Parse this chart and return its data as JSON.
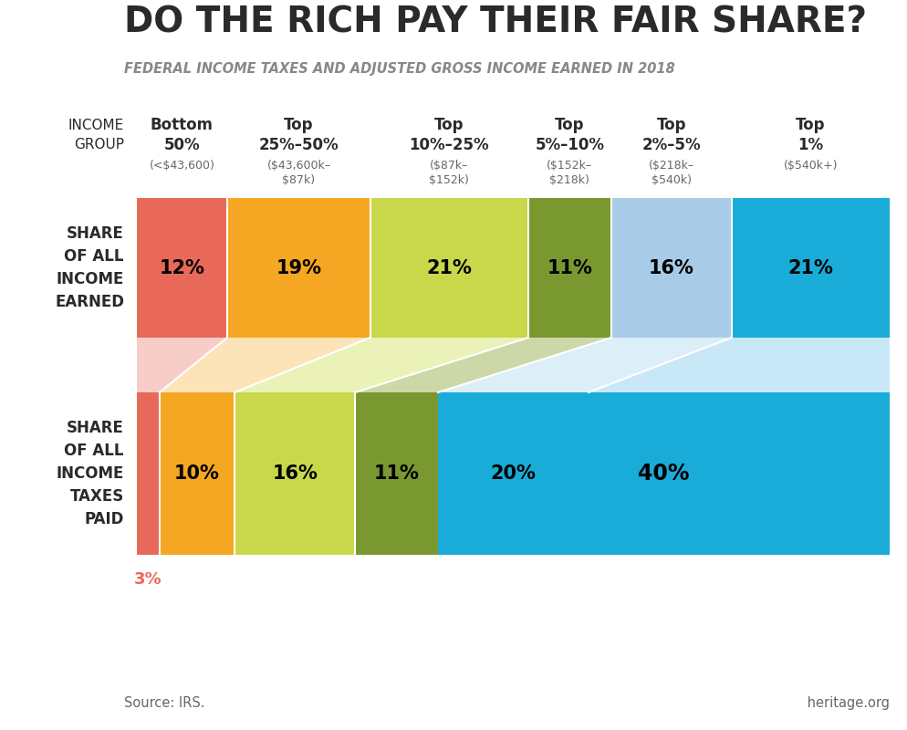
{
  "title": "DO THE RICH PAY THEIR FAIR SHARE?",
  "subtitle": "FEDERAL INCOME TAXES AND ADJUSTED GROSS INCOME EARNED IN 2018",
  "source": "Source: IRS.",
  "branding": " heritage.org",
  "col_labels_main": [
    "Bottom\n50%",
    "Top\n25%–50%",
    "Top\n10%–25%",
    "Top\n5%–10%",
    "Top\n2%–5%",
    "Top\n1%"
  ],
  "col_labels_sub": [
    "(<$43,600)",
    "($43,600k–\n$87k)",
    "($87k–\n$152k)",
    "($152k–\n$218k)",
    "($218k–\n$540k)",
    "($540k+)"
  ],
  "income_shares": [
    12,
    19,
    21,
    11,
    16,
    21
  ],
  "tax_shares": [
    3,
    10,
    16,
    11,
    20,
    40
  ],
  "colors": [
    "#e8695a",
    "#f5a623",
    "#c8d84a",
    "#7a9830",
    "#a8cce8",
    "#1aacd8"
  ],
  "light_colors": [
    "#f7cdc8",
    "#fce4b8",
    "#eaf2b8",
    "#ccd8a8",
    "#dceef8",
    "#c8e8f8"
  ],
  "row_label_income": "SHARE\nOF ALL\nINCOME\nEARNED",
  "row_label_taxes": "SHARE\nOF ALL\nINCOME\nTAXES\nPAID",
  "income_group_label": "INCOME\nGROUP",
  "background_color": "#ffffff",
  "text_color": "#2a2a2a",
  "subtext_color": "#666666",
  "label_3pct_color": "#e8695a"
}
